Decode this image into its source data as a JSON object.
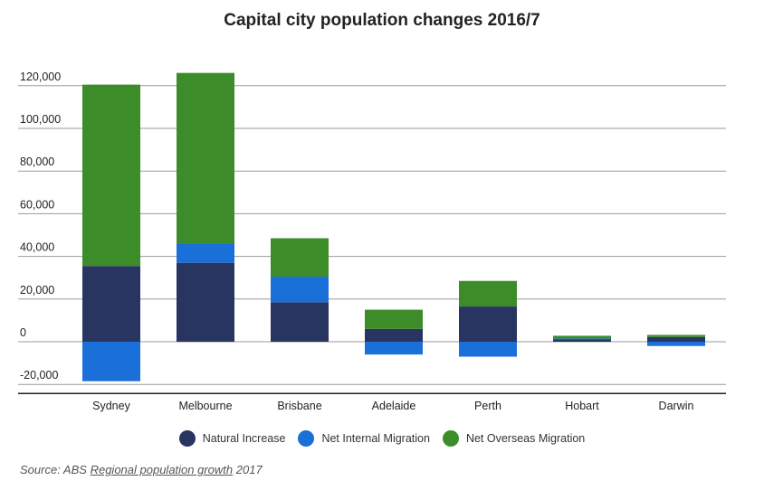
{
  "chart_data": {
    "type": "bar",
    "stacked": true,
    "title": "Capital city population changes 2016/7",
    "categories": [
      "Sydney",
      "Melbourne",
      "Brisbane",
      "Adelaide",
      "Perth",
      "Hobart",
      "Darwin"
    ],
    "series": [
      {
        "name": "Natural Increase",
        "color": "#283561",
        "values": [
          35500,
          37000,
          18500,
          6000,
          16500,
          1200,
          2200
        ]
      },
      {
        "name": "Net Internal Migration",
        "color": "#1a6fd9",
        "values": [
          -18500,
          9000,
          12000,
          -6000,
          -7000,
          300,
          -2000
        ]
      },
      {
        "name": "Net Overseas Migration",
        "color": "#3c8c2a",
        "values": [
          85000,
          80000,
          18000,
          9000,
          12000,
          1300,
          1000
        ]
      }
    ],
    "yticks": [
      {
        "value": 120000,
        "label": "120,000"
      },
      {
        "value": 100000,
        "label": "100,000"
      },
      {
        "value": 80000,
        "label": "80,000"
      },
      {
        "value": 60000,
        "label": "60,000"
      },
      {
        "value": 40000,
        "label": "40,000"
      },
      {
        "value": 20000,
        "label": "20,000"
      },
      {
        "value": 0,
        "label": "0"
      },
      {
        "value": -20000,
        "label": "-20,000"
      }
    ],
    "ylim": [
      -20000,
      120000
    ],
    "xlabel": "",
    "ylabel": "",
    "grid": true,
    "legend": "bottom-center"
  },
  "source": {
    "prefix": "Source: ABS",
    "link_text": "Regional population growth",
    "suffix": "2017"
  }
}
